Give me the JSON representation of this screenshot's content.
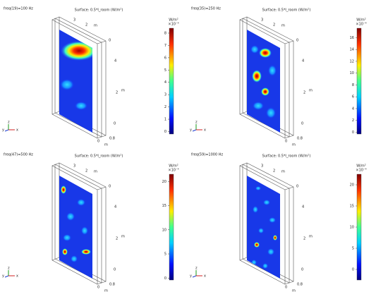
{
  "panels": [
    {
      "label": "freq(19)=100 Hz",
      "title": "Surface: 0.5*I_room (W/m²)",
      "unit": "W/m²",
      "exponent": "×10⁻⁴",
      "range": [
        -0.2,
        8.4
      ],
      "ticks": [
        0,
        1,
        2,
        3,
        4,
        5,
        6,
        7,
        8
      ],
      "axis_texts": [
        "3",
        "2",
        "m",
        "0",
        "4",
        "2",
        "m",
        "0",
        "0",
        "0.8",
        "m"
      ],
      "triad": [
        "y",
        "z",
        "x"
      ]
    },
    {
      "label": "freq(35)=250 Hz",
      "title": "Surface: 0.5*I_room (W/m²)",
      "unit": "W/m²",
      "exponent": "×10⁻⁴",
      "range": [
        -0.3,
        17.6
      ],
      "ticks": [
        0,
        2,
        4,
        6,
        8,
        10,
        12,
        14,
        16
      ],
      "axis_texts": [
        "3",
        "2",
        "m",
        "0",
        "4",
        "2",
        "m",
        "0",
        "0",
        "0.8",
        "m"
      ],
      "triad": [
        "y",
        "z",
        "x"
      ]
    },
    {
      "label": "freq(47)=500 Hz",
      "title": "Surface: 0.5*I_room (W/m²)",
      "unit": "W/m²",
      "exponent": "×10⁻⁴",
      "range": [
        -0.4,
        21.5
      ],
      "ticks": [
        0,
        5,
        10,
        15,
        20
      ],
      "axis_texts": [
        "3",
        "2",
        "m",
        "0",
        "4",
        "2",
        "m",
        "0",
        "0",
        "0.8",
        "m"
      ],
      "triad": [
        "y",
        "z",
        "x"
      ]
    },
    {
      "label": "freq(59)=1000 Hz",
      "title": "Surface: 0.5*I_room (W/m²)",
      "unit": "W/m²",
      "exponent": "×10⁻⁴",
      "range": [
        -2.5,
        22.5
      ],
      "ticks": [
        0,
        5,
        10,
        15,
        20
      ],
      "axis_texts": [
        "3",
        "2",
        "m",
        "0",
        "4",
        "2",
        "m",
        "0",
        "0",
        "0.8",
        "m"
      ],
      "triad": [
        "y",
        "z",
        "x"
      ]
    }
  ]
}
